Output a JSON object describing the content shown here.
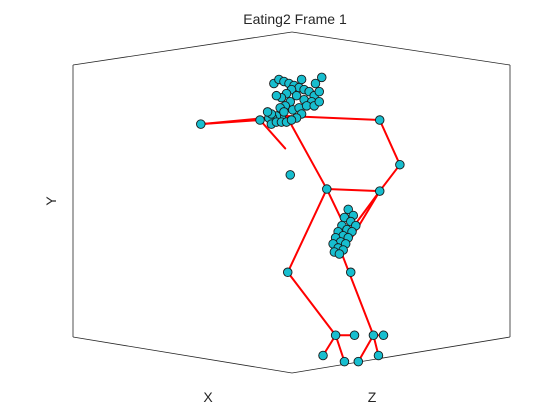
{
  "chart_data": {
    "type": "scatter",
    "title": "Eating2 Frame 1",
    "xlabel": "X",
    "ylabel": "Y",
    "zlabel": "Z",
    "grid": false,
    "legend": "none",
    "colors": {
      "marker_fill": "#17becf",
      "marker_edge": "#1a1a1a",
      "bone": "#ff0000",
      "box": "#262626"
    },
    "skeleton": {
      "joints": {
        "head_top": [
          0.51,
          0.05
        ],
        "head": [
          0.47,
          0.18
        ],
        "neck": [
          0.48,
          0.34
        ],
        "l_hand": [
          -0.2,
          0.3
        ],
        "l_elbow": [
          0.27,
          0.32
        ],
        "r_shoulder": [
          1.22,
          0.32
        ],
        "r_elbow": [
          1.38,
          0.1
        ],
        "hips": [
          0.8,
          -0.02
        ],
        "r_hip": [
          1.22,
          -0.03
        ],
        "r_wrist": [
          0.97,
          -0.24
        ],
        "r_fingers": [
          0.92,
          -0.34
        ],
        "l_knee": [
          0.49,
          -0.43
        ],
        "r_knee": [
          0.99,
          -0.43
        ],
        "l_ankle": [
          0.87,
          -0.74
        ],
        "l_heel": [
          0.77,
          -0.84
        ],
        "l_toe": [
          0.94,
          -0.87
        ],
        "l_foot_mid": [
          1.02,
          -0.74
        ],
        "r_ankle": [
          1.17,
          -0.74
        ],
        "r_heel": [
          1.05,
          -0.87
        ],
        "r_toe": [
          1.21,
          -0.84
        ],
        "r_foot_mid": [
          1.25,
          -0.74
        ]
      },
      "bones": [
        [
          "l_hand",
          "l_elbow"
        ],
        [
          "l_elbow",
          "head"
        ],
        [
          "l_hand",
          "neck"
        ],
        [
          "neck",
          "r_shoulder"
        ],
        [
          "r_shoulder",
          "r_elbow"
        ],
        [
          "r_elbow",
          "r_hip"
        ],
        [
          "neck",
          "hips"
        ],
        [
          "hips",
          "r_hip"
        ],
        [
          "r_hip",
          "r_wrist"
        ],
        [
          "hips",
          "r_wrist"
        ],
        [
          "hips",
          "l_knee"
        ],
        [
          "l_knee",
          "l_ankle"
        ],
        [
          "l_ankle",
          "l_heel"
        ],
        [
          "l_ankle",
          "l_toe"
        ],
        [
          "l_ankle",
          "l_foot_mid"
        ],
        [
          "r_hip",
          "r_fingers"
        ],
        [
          "r_fingers",
          "r_ankle"
        ],
        [
          "r_ankle",
          "r_heel"
        ],
        [
          "r_ankle",
          "r_toe"
        ],
        [
          "r_ankle",
          "r_foot_mid"
        ]
      ]
    },
    "points": [
      [
        -0.2,
        0.3
      ],
      [
        0.27,
        0.32
      ],
      [
        1.22,
        0.32
      ],
      [
        1.38,
        0.1
      ],
      [
        0.8,
        -0.02
      ],
      [
        1.22,
        -0.03
      ],
      [
        0.49,
        -0.43
      ],
      [
        0.99,
        -0.43
      ],
      [
        0.87,
        -0.74
      ],
      [
        0.77,
        -0.84
      ],
      [
        0.94,
        -0.87
      ],
      [
        1.02,
        -0.74
      ],
      [
        1.17,
        -0.74
      ],
      [
        1.05,
        -0.87
      ],
      [
        1.21,
        -0.84
      ],
      [
        1.25,
        -0.74
      ],
      [
        0.38,
        0.5
      ],
      [
        0.42,
        0.52
      ],
      [
        0.46,
        0.51
      ],
      [
        0.5,
        0.5
      ],
      [
        0.54,
        0.49
      ],
      [
        0.58,
        0.48
      ],
      [
        0.62,
        0.47
      ],
      [
        0.66,
        0.46
      ],
      [
        0.7,
        0.44
      ],
      [
        0.74,
        0.46
      ],
      [
        0.71,
        0.5
      ],
      [
        0.6,
        0.52
      ],
      [
        0.52,
        0.47
      ],
      [
        0.48,
        0.45
      ],
      [
        0.44,
        0.43
      ],
      [
        0.4,
        0.44
      ],
      [
        0.56,
        0.44
      ],
      [
        0.62,
        0.42
      ],
      [
        0.68,
        0.41
      ],
      [
        0.51,
        0.41
      ],
      [
        0.47,
        0.39
      ],
      [
        0.43,
        0.38
      ],
      [
        0.53,
        0.37
      ],
      [
        0.58,
        0.38
      ],
      [
        0.64,
        0.39
      ],
      [
        0.7,
        0.39
      ],
      [
        0.74,
        0.41
      ],
      [
        0.6,
        0.35
      ],
      [
        0.56,
        0.33
      ],
      [
        0.44,
        0.33
      ],
      [
        0.4,
        0.34
      ],
      [
        0.37,
        0.33
      ],
      [
        0.34,
        0.33
      ],
      [
        0.36,
        0.3
      ],
      [
        0.4,
        0.31
      ],
      [
        0.44,
        0.31
      ],
      [
        0.48,
        0.31
      ],
      [
        0.52,
        0.32
      ],
      [
        0.46,
        0.36
      ],
      [
        0.36,
        0.35
      ],
      [
        0.33,
        0.36
      ],
      [
        0.76,
        0.53
      ],
      [
        0.51,
        0.05
      ],
      [
        0.97,
        -0.12
      ],
      [
        1.01,
        -0.15
      ],
      [
        0.94,
        -0.16
      ],
      [
        0.99,
        -0.18
      ],
      [
        1.03,
        -0.2
      ],
      [
        0.92,
        -0.2
      ],
      [
        0.96,
        -0.22
      ],
      [
        1.0,
        -0.23
      ],
      [
        0.89,
        -0.23
      ],
      [
        0.93,
        -0.25
      ],
      [
        0.97,
        -0.26
      ],
      [
        0.87,
        -0.26
      ],
      [
        0.91,
        -0.28
      ],
      [
        0.95,
        -0.29
      ],
      [
        0.85,
        -0.29
      ],
      [
        0.89,
        -0.31
      ],
      [
        0.93,
        -0.32
      ],
      [
        0.86,
        -0.33
      ],
      [
        0.9,
        -0.34
      ]
    ]
  }
}
